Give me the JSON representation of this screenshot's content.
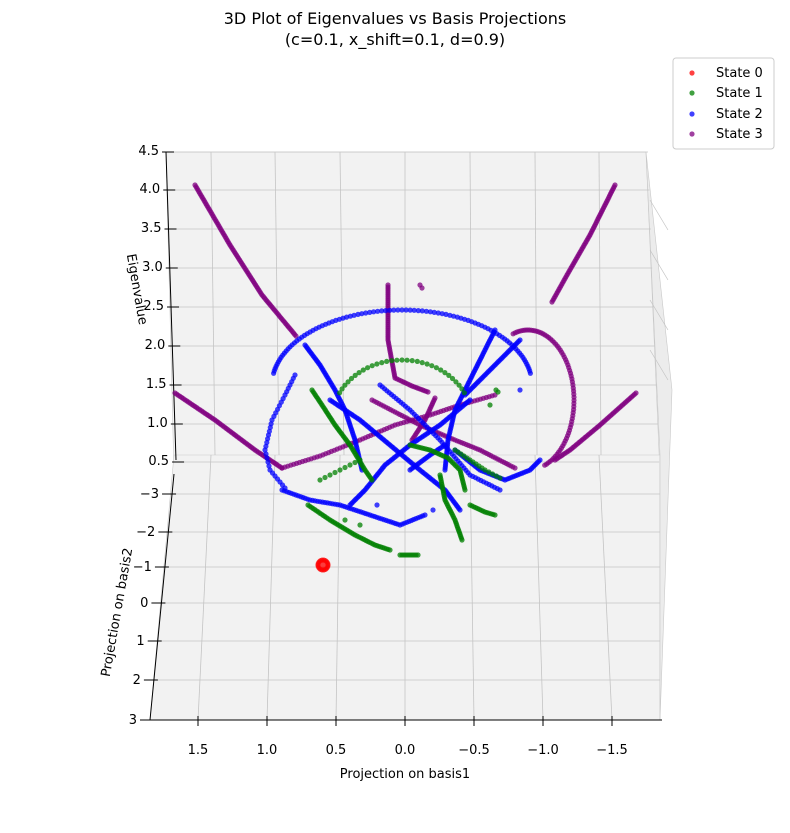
{
  "chart_data": {
    "type": "scatter",
    "title_line1": "3D Plot of Eigenvalues vs Basis Projections",
    "title_line2": "(c=0.1, x_shift=0.1, d=0.9)",
    "xlabel": "Projection on basis1",
    "ylabel": "Projection on basis2",
    "zlabel": "Eigenvalue",
    "xlim": [
      1.8,
      -1.8
    ],
    "ylim": [
      -3.5,
      3.0
    ],
    "zlim": [
      0.3,
      4.5
    ],
    "x_ticks": [
      "1.5",
      "1.0",
      "0.5",
      "0.0",
      "−0.5",
      "−1.0",
      "−1.5"
    ],
    "y_ticks": [
      "−3",
      "−2",
      "−1",
      "0",
      "1",
      "2",
      "3"
    ],
    "z_ticks": [
      "4.5",
      "4.0",
      "3.5",
      "3.0",
      "2.5",
      "2.0",
      "1.5",
      "1.0",
      "0.5"
    ],
    "grid": true,
    "legend_position": "top-right",
    "series": [
      {
        "name": "State 0",
        "color": "#ff0000"
      },
      {
        "name": "State 1",
        "color": "#008000"
      },
      {
        "name": "State 2",
        "color": "#0000ff"
      },
      {
        "name": "State 3",
        "color": "#800080"
      }
    ]
  }
}
